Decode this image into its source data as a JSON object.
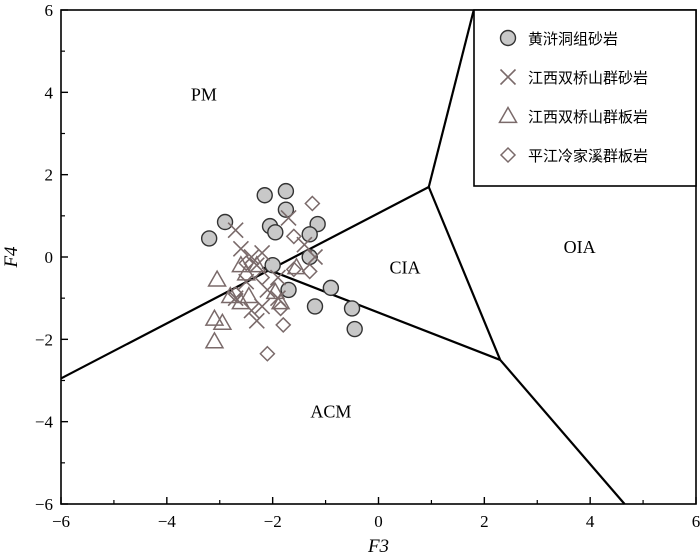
{
  "chart_data": {
    "type": "scatter",
    "xlabel": "F3",
    "ylabel": "F4",
    "xlim": [
      -6,
      6
    ],
    "ylim": [
      -6,
      6
    ],
    "x_ticks": [
      "−6",
      "−4",
      "−2",
      "0",
      "2",
      "4",
      "6"
    ],
    "y_ticks": [
      "−6",
      "−4",
      "−2",
      "0",
      "2",
      "4",
      "6"
    ],
    "grid": false,
    "legend_position": "top-right",
    "boundaries": [
      [
        [
          -6,
          -2.95
        ],
        [
          0.95,
          1.7
        ]
      ],
      [
        [
          0.95,
          1.7
        ],
        [
          1.8,
          6.0
        ]
      ],
      [
        [
          0.95,
          1.7
        ],
        [
          2.3,
          -2.5
        ]
      ],
      [
        [
          -2.2,
          -0.25
        ],
        [
          2.3,
          -2.5
        ]
      ],
      [
        [
          2.3,
          -2.5
        ],
        [
          4.65,
          -6.0
        ]
      ]
    ],
    "regions": [
      {
        "label": "PM",
        "x": -3.3,
        "y": 3.8
      },
      {
        "label": "CIA",
        "x": 0.5,
        "y": -0.4
      },
      {
        "label": "OIA",
        "x": 3.8,
        "y": 0.1
      },
      {
        "label": "ACM",
        "x": -0.9,
        "y": -3.9
      }
    ],
    "series": [
      {
        "name": "黄浒洞组砂岩",
        "marker": "circle",
        "color": "#666666",
        "fill": "#c8c8c8",
        "points": [
          [
            -3.2,
            0.45
          ],
          [
            -2.9,
            0.85
          ],
          [
            -2.15,
            1.5
          ],
          [
            -1.75,
            1.6
          ],
          [
            -1.75,
            1.15
          ],
          [
            -2.05,
            0.75
          ],
          [
            -1.95,
            0.6
          ],
          [
            -1.15,
            0.8
          ],
          [
            -1.3,
            0.55
          ],
          [
            -1.3,
            0.0
          ],
          [
            -2.0,
            -0.2
          ],
          [
            -1.7,
            -0.8
          ],
          [
            -0.9,
            -0.75
          ],
          [
            -1.2,
            -1.2
          ],
          [
            -0.5,
            -1.25
          ],
          [
            -0.45,
            -1.75
          ]
        ]
      },
      {
        "name": "江西双桥山群砂岩",
        "marker": "x",
        "color": "#7a6a6a",
        "points": [
          [
            -2.7,
            0.65
          ],
          [
            -2.6,
            0.2
          ],
          [
            -2.4,
            0.0
          ],
          [
            -2.3,
            -0.2
          ],
          [
            -2.2,
            0.1
          ],
          [
            -2.5,
            -0.6
          ],
          [
            -2.7,
            -1.0
          ],
          [
            -2.4,
            -1.3
          ],
          [
            -2.3,
            -1.55
          ],
          [
            -2.1,
            -0.8
          ],
          [
            -1.9,
            -0.5
          ],
          [
            -1.9,
            -1.0
          ],
          [
            -1.7,
            0.95
          ],
          [
            -1.4,
            0.3
          ],
          [
            -1.2,
            0.0
          ],
          [
            -2.2,
            -1.2
          ]
        ]
      },
      {
        "name": "江西双桥山群板岩",
        "marker": "triangle",
        "color": "#7a6a6a",
        "points": [
          [
            -3.05,
            -0.55
          ],
          [
            -2.8,
            -0.95
          ],
          [
            -3.1,
            -1.5
          ],
          [
            -2.95,
            -1.6
          ],
          [
            -3.1,
            -2.05
          ],
          [
            -2.6,
            -0.2
          ],
          [
            -2.5,
            -0.4
          ],
          [
            -2.45,
            -0.95
          ],
          [
            -2.3,
            -0.2
          ],
          [
            -1.95,
            -0.85
          ],
          [
            -1.85,
            -1.1
          ],
          [
            -1.55,
            -0.25
          ],
          [
            -2.6,
            -1.1
          ]
        ]
      },
      {
        "name": "平江冷家溪群板岩",
        "marker": "diamond",
        "color": "#7a6a6a",
        "points": [
          [
            -1.25,
            1.3
          ],
          [
            -1.6,
            0.5
          ],
          [
            -1.3,
            -0.35
          ],
          [
            -2.5,
            -0.15
          ],
          [
            -2.2,
            -0.5
          ],
          [
            -2.7,
            -0.9
          ],
          [
            -1.85,
            -1.25
          ],
          [
            -1.8,
            -1.65
          ],
          [
            -2.1,
            -2.35
          ],
          [
            -1.6,
            -0.3
          ]
        ]
      }
    ]
  }
}
